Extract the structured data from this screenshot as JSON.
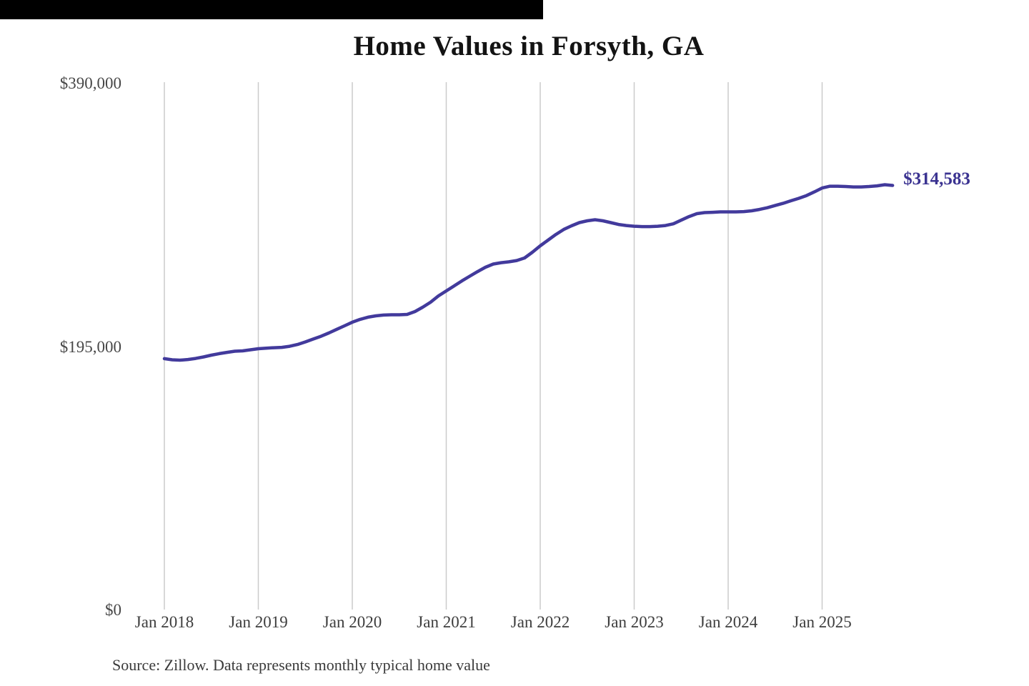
{
  "top_bar": {
    "color": "#000000"
  },
  "chart": {
    "title": "Home Values in Forsyth, GA",
    "y_axis": {
      "labels": [
        "$390,000",
        "$195,000",
        "$0"
      ]
    },
    "x_axis": {
      "labels": [
        "Jan 2018",
        "Jan 2019",
        "Jan 2020",
        "Jan 2021",
        "Jan 2022",
        "Jan 2023",
        "Jan 2024",
        "Jan 2025"
      ]
    },
    "end_label": "$314,583",
    "source": "Source: Zillow. Data represents monthly typical home value"
  },
  "chart_data": {
    "type": "line",
    "title": "Home Values in Forsyth, GA",
    "series_name": "Monthly typical home value",
    "x": [
      "2018-01",
      "2018-02",
      "2018-03",
      "2018-04",
      "2018-05",
      "2018-06",
      "2018-07",
      "2018-08",
      "2018-09",
      "2018-10",
      "2018-11",
      "2018-12",
      "2019-01",
      "2019-02",
      "2019-03",
      "2019-04",
      "2019-05",
      "2019-06",
      "2019-07",
      "2019-08",
      "2019-09",
      "2019-10",
      "2019-11",
      "2019-12",
      "2020-01",
      "2020-02",
      "2020-03",
      "2020-04",
      "2020-05",
      "2020-06",
      "2020-07",
      "2020-08",
      "2020-09",
      "2020-10",
      "2020-11",
      "2020-12",
      "2021-01",
      "2021-02",
      "2021-03",
      "2021-04",
      "2021-05",
      "2021-06",
      "2021-07",
      "2021-08",
      "2021-09",
      "2021-10",
      "2021-11",
      "2021-12",
      "2022-01",
      "2022-02",
      "2022-03",
      "2022-04",
      "2022-05",
      "2022-06",
      "2022-07",
      "2022-08",
      "2022-09",
      "2022-10",
      "2022-11",
      "2022-12",
      "2023-01",
      "2023-02",
      "2023-03",
      "2023-04",
      "2023-05",
      "2023-06",
      "2023-07",
      "2023-08",
      "2023-09",
      "2023-10",
      "2023-11",
      "2023-12",
      "2024-01",
      "2024-02",
      "2024-03",
      "2024-04",
      "2024-05",
      "2024-06",
      "2024-07",
      "2024-08",
      "2024-09",
      "2024-10",
      "2024-11",
      "2024-12",
      "2025-01",
      "2025-02",
      "2025-03",
      "2025-04",
      "2025-05",
      "2025-06",
      "2025-07",
      "2025-08",
      "2025-09",
      "2025-10"
    ],
    "values": [
      186300,
      185500,
      185200,
      185700,
      186500,
      187600,
      188900,
      190000,
      191000,
      191800,
      192100,
      192900,
      193700,
      194100,
      194400,
      194700,
      195500,
      196800,
      198700,
      200800,
      202900,
      205300,
      208000,
      210600,
      213300,
      215400,
      217000,
      218000,
      218600,
      218800,
      218800,
      219100,
      221200,
      224400,
      228100,
      232800,
      236500,
      240200,
      243900,
      247400,
      250800,
      254000,
      256400,
      257400,
      258000,
      259000,
      260900,
      265100,
      269900,
      274100,
      278300,
      282000,
      284700,
      287100,
      288400,
      289200,
      288400,
      287100,
      285700,
      284900,
      284400,
      284100,
      284100,
      284400,
      284900,
      286200,
      288900,
      291500,
      293700,
      294500,
      294700,
      295000,
      295000,
      295000,
      295200,
      295800,
      296800,
      298100,
      299700,
      301300,
      303200,
      305000,
      307100,
      309800,
      312700,
      314000,
      314000,
      313800,
      313500,
      313500,
      313800,
      314300,
      315100,
      314583
    ],
    "final_value": 314583,
    "final_value_label": "$314,583",
    "ylim": [
      0,
      390000
    ],
    "y_ticks": [
      390000,
      195000,
      0
    ],
    "x_tick_labels": [
      "Jan 2018",
      "Jan 2019",
      "Jan 2020",
      "Jan 2021",
      "Jan 2022",
      "Jan 2023",
      "Jan 2024",
      "Jan 2025"
    ],
    "grid": "vertical-only",
    "gridline_color": "#cbcbcb",
    "line_color": "#423a9c",
    "label_color": "#3b3391",
    "source": "Source: Zillow. Data represents monthly typical home value"
  }
}
